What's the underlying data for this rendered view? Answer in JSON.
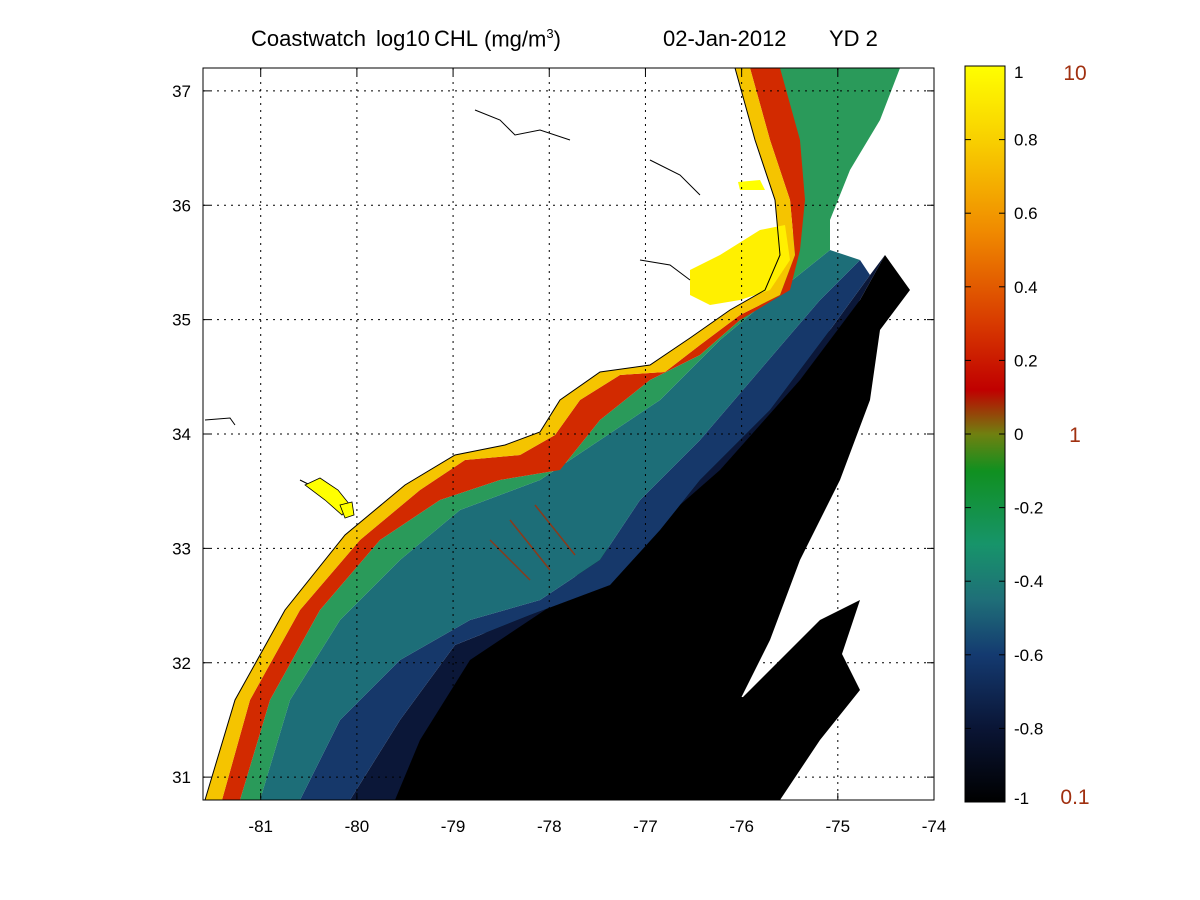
{
  "title": {
    "product": "Coastwatch",
    "quantity": "log10",
    "variable": "CHL",
    "units_prefix": "(mg/m",
    "units_exp": "3",
    "units_suffix": ")",
    "date": "02-Jan-2012",
    "yearday": "YD 2"
  },
  "x_ticks": [
    "-81",
    "-80",
    "-79",
    "-78",
    "-77",
    "-76",
    "-75",
    "-74"
  ],
  "y_ticks": [
    "37",
    "36",
    "35",
    "34",
    "33",
    "32",
    "31"
  ],
  "colorbar": {
    "ticks": [
      "1",
      "0.8",
      "0.6",
      "0.4",
      "0.2",
      "0",
      "-0.2",
      "-0.4",
      "-0.6",
      "-0.8",
      "-1"
    ],
    "linear_labels": [
      "10",
      "1",
      "0.1"
    ],
    "linear_color": "#a03010",
    "stops": [
      {
        "v": -1.0,
        "c": "#000000"
      },
      {
        "v": -0.8,
        "c": "#0a1535"
      },
      {
        "v": -0.6,
        "c": "#143a70"
      },
      {
        "v": -0.45,
        "c": "#1f6f78"
      },
      {
        "v": -0.3,
        "c": "#17946a"
      },
      {
        "v": -0.1,
        "c": "#109020"
      },
      {
        "v": 0.0,
        "c": "#708010"
      },
      {
        "v": 0.12,
        "c": "#c00000"
      },
      {
        "v": 0.3,
        "c": "#d83a00"
      },
      {
        "v": 0.55,
        "c": "#f08a00"
      },
      {
        "v": 0.8,
        "c": "#f8d000"
      },
      {
        "v": 1.0,
        "c": "#ffff00"
      }
    ]
  },
  "map": {
    "lon_range": [
      -81.6,
      -74
    ],
    "lat_range": [
      30.8,
      37.2
    ],
    "grid": "dotted",
    "ocean_bands": [
      {
        "name": "nearshore-yellow",
        "color": "#f5c400"
      },
      {
        "name": "coastal-red",
        "color": "#d22a00"
      },
      {
        "name": "shelf-green",
        "color": "#2a9a5a"
      },
      {
        "name": "midshelf-teal",
        "color": "#1d6e78"
      },
      {
        "name": "outer-blue",
        "color": "#16386a"
      },
      {
        "name": "slope-navy",
        "color": "#0b1738"
      },
      {
        "name": "offshore-black",
        "color": "#000000"
      }
    ],
    "sound_color": "#fff000"
  }
}
